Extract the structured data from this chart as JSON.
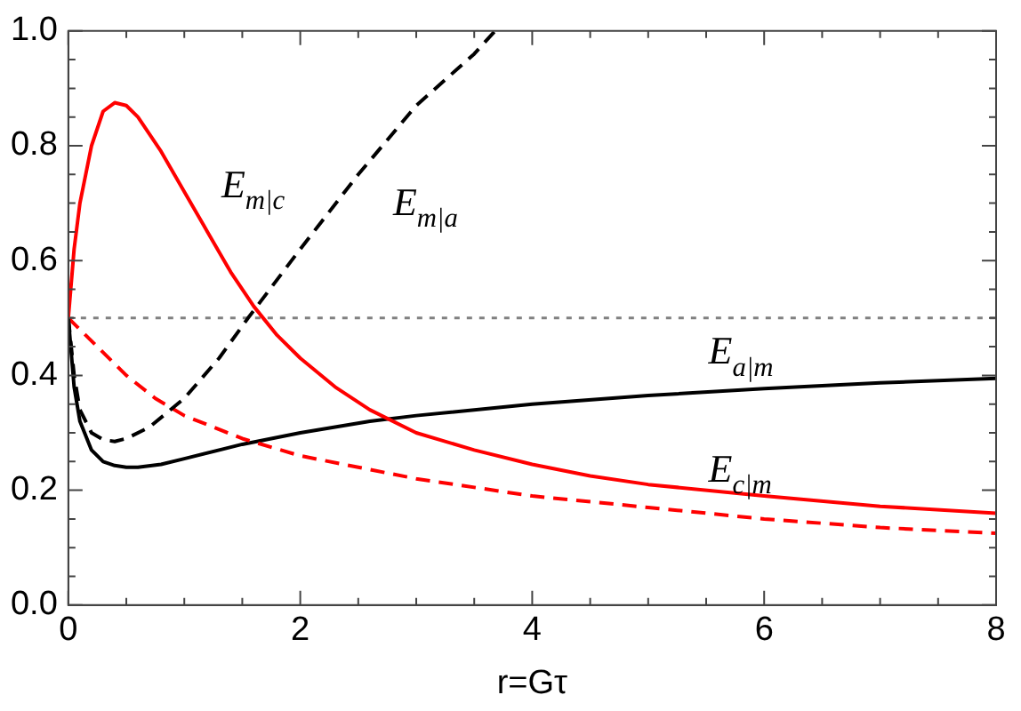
{
  "chart_data": {
    "type": "line",
    "xlabel": "r=Gτ",
    "xlim": [
      0,
      8
    ],
    "ylim": [
      0,
      1
    ],
    "xticks": [
      0,
      {
        "value": 0.5,
        "label": null
      },
      {
        "value": 1,
        "label": null
      },
      {
        "value": 1.5,
        "label": null
      },
      2,
      {
        "value": 2.5,
        "label": null
      },
      {
        "value": 3,
        "label": null
      },
      {
        "value": 3.5,
        "label": null
      },
      4,
      {
        "value": 4.5,
        "label": null
      },
      {
        "value": 5,
        "label": null
      },
      {
        "value": 5.5,
        "label": null
      },
      6,
      {
        "value": 6.5,
        "label": null
      },
      {
        "value": 7,
        "label": null
      },
      {
        "value": 7.5,
        "label": null
      },
      8
    ],
    "yticks": [
      {
        "value": 0,
        "label": "0.0"
      },
      {
        "value": 0.05,
        "label": null
      },
      {
        "value": 0.1,
        "label": null
      },
      {
        "value": 0.15,
        "label": null
      },
      {
        "value": 0.2,
        "label": "0.2"
      },
      {
        "value": 0.25,
        "label": null
      },
      {
        "value": 0.3,
        "label": null
      },
      {
        "value": 0.35,
        "label": null
      },
      {
        "value": 0.4,
        "label": "0.4"
      },
      {
        "value": 0.45,
        "label": null
      },
      {
        "value": 0.5,
        "label": null
      },
      {
        "value": 0.55,
        "label": null
      },
      {
        "value": 0.6,
        "label": "0.6"
      },
      {
        "value": 0.65,
        "label": null
      },
      {
        "value": 0.7,
        "label": null
      },
      {
        "value": 0.75,
        "label": null
      },
      {
        "value": 0.8,
        "label": "0.8"
      },
      {
        "value": 0.85,
        "label": null
      },
      {
        "value": 0.9,
        "label": null
      },
      {
        "value": 0.95,
        "label": null
      },
      {
        "value": 1,
        "label": "1.0"
      }
    ],
    "grid": false,
    "legend": false,
    "marker": "none",
    "series": [
      {
        "name": "E$_{m|c}$",
        "color": "#ff0000",
        "line_style": "solid",
        "x": [
          0,
          0.05,
          0.1,
          0.2,
          0.3,
          0.4,
          0.5,
          0.6,
          0.8,
          1,
          1.2,
          1.4,
          1.6,
          1.8,
          2,
          2.3,
          2.6,
          3,
          3.5,
          4,
          4.5,
          5,
          6,
          7,
          8
        ],
        "values": [
          0.5,
          0.62,
          0.7,
          0.8,
          0.86,
          0.875,
          0.87,
          0.85,
          0.79,
          0.72,
          0.65,
          0.58,
          0.52,
          0.47,
          0.43,
          0.38,
          0.34,
          0.3,
          0.27,
          0.245,
          0.225,
          0.21,
          0.19,
          0.172,
          0.16
        ]
      },
      {
        "name": "E$_{m|a}$",
        "color": "#000000",
        "line_style": "dashed",
        "x": [
          0,
          0.05,
          0.1,
          0.2,
          0.3,
          0.4,
          0.5,
          0.7,
          1,
          1.3,
          1.55,
          2,
          2.5,
          3,
          3.5,
          3.68
        ],
        "values": [
          0.5,
          0.4,
          0.34,
          0.3,
          0.288,
          0.285,
          0.29,
          0.31,
          0.36,
          0.43,
          0.5,
          0.62,
          0.75,
          0.87,
          0.96,
          1.0
        ]
      },
      {
        "name": "E$_{c|m}$",
        "color": "#ff0000",
        "line_style": "dashed",
        "x": [
          0,
          0.25,
          0.5,
          0.75,
          1,
          1.5,
          2,
          2.5,
          3,
          4,
          5,
          6,
          7,
          8
        ],
        "values": [
          0.5,
          0.45,
          0.4,
          0.36,
          0.33,
          0.29,
          0.26,
          0.24,
          0.22,
          0.19,
          0.17,
          0.15,
          0.135,
          0.125
        ]
      },
      {
        "name": "E$_{a|m}$",
        "color": "#000000",
        "line_style": "solid",
        "x": [
          0,
          0.05,
          0.1,
          0.2,
          0.3,
          0.4,
          0.5,
          0.6,
          0.8,
          1,
          1.5,
          2,
          2.6,
          3,
          4,
          5,
          6,
          7,
          8
        ],
        "values": [
          0.5,
          0.38,
          0.32,
          0.27,
          0.25,
          0.243,
          0.24,
          0.24,
          0.245,
          0.255,
          0.28,
          0.3,
          0.32,
          0.33,
          0.35,
          0.365,
          0.377,
          0.387,
          0.395
        ]
      }
    ],
    "ref_lines": [
      {
        "axis": "y",
        "value": 0.5,
        "color": "#808080",
        "line_style": "dotted"
      }
    ]
  }
}
